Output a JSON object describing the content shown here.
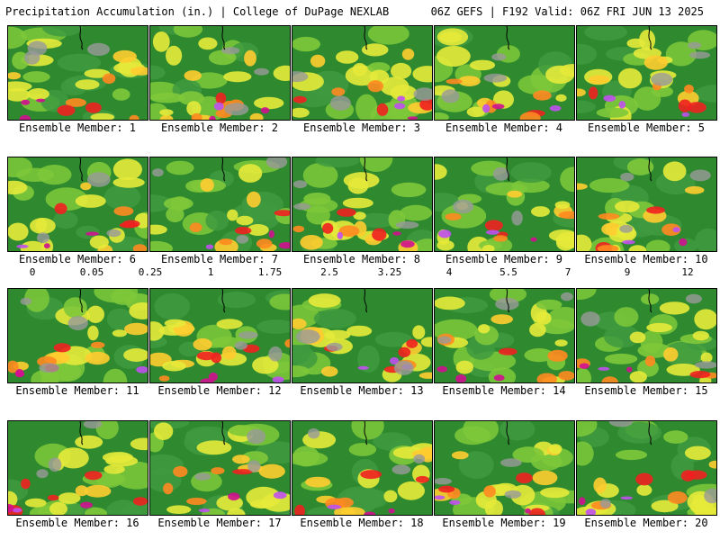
{
  "header": {
    "left": "Precipitation Accumulation (in.) | College of DuPage NEXLAB",
    "right": "06Z GEFS | F192 Valid: 06Z FRI JUN 13 2025"
  },
  "members": [
    "Ensemble Member: 1",
    "Ensemble Member: 2",
    "Ensemble Member: 3",
    "Ensemble Member: 4",
    "Ensemble Member: 5",
    "Ensemble Member: 6",
    "Ensemble Member: 7",
    "Ensemble Member: 8",
    "Ensemble Member: 9",
    "Ensemble Member: 10",
    "Ensemble Member: 11",
    "Ensemble Member: 12",
    "Ensemble Member: 13",
    "Ensemble Member: 14",
    "Ensemble Member: 15",
    "Ensemble Member: 16",
    "Ensemble Member: 17",
    "Ensemble Member: 18",
    "Ensemble Member: 19",
    "Ensemble Member: 20"
  ],
  "colorbar": {
    "labels": [
      "0",
      "0.05",
      "0.25",
      "1",
      "1.75",
      "2.5",
      "3.25",
      "4",
      "5.5",
      "7",
      "9",
      "12"
    ],
    "colors": [
      "#d8d8d8",
      "#bcbcbc",
      "#9a9a9a",
      "#7a7a7a",
      "#2e6b2e",
      "#3f8f3f",
      "#58a840",
      "#8fc83a",
      "#c8e040",
      "#f2f23a",
      "#ffd23a",
      "#ffb030",
      "#ff8a20",
      "#ff5a20",
      "#f02020",
      "#c81010",
      "#a00a2a",
      "#8a0a4a",
      "#b0106a",
      "#d81890",
      "#f030c8",
      "#c050f0",
      "#7a7af0",
      "#3aa0ff",
      "#30e0f0",
      "#3ad0c8",
      "#3aa8a8",
      "#8a8a8a",
      "#a8a8a8",
      "#c8c8c8"
    ]
  }
}
